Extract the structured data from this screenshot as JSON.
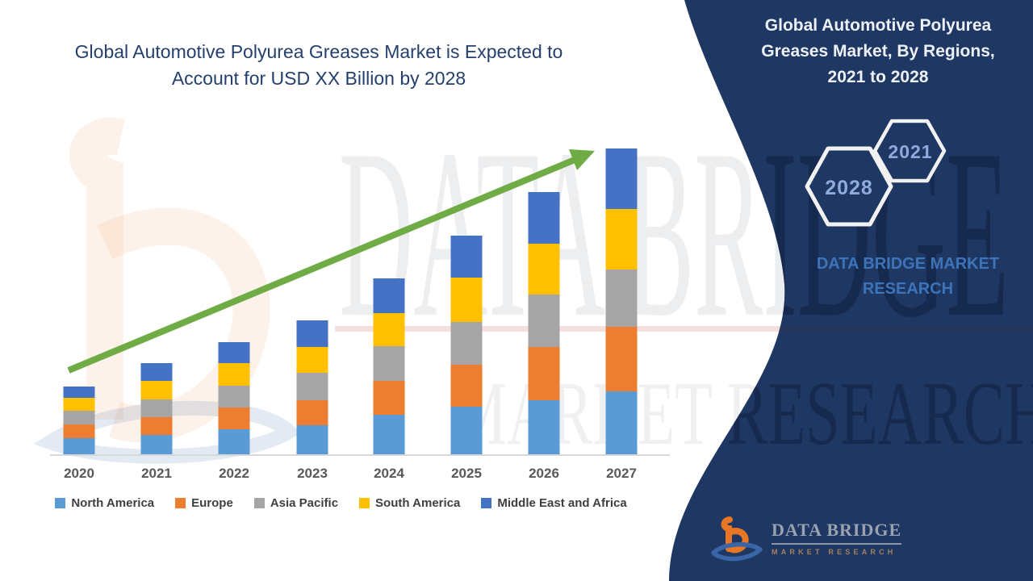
{
  "main_title": "Global Automotive Polyurea Greases Market is Expected to Account for USD XX Billion by 2028",
  "watermark": {
    "row1": "DATA BRIDGE",
    "row2": "MARKET RESEARCH",
    "logo_b_color": "#ED7D31",
    "logo_swoosh_color": "#2E5FA3",
    "underline_color": "#D98C85"
  },
  "chart_data": {
    "type": "bar",
    "stacked": true,
    "title": "Global Automotive Polyurea Greases Market is Expected to Account for USD XX Billion by 2028",
    "xlabel": "",
    "ylabel": "",
    "units_note": "values shown as USD XX Billion (not labeled); series values are relative estimates read from bar pixel heights",
    "categories": [
      "2020",
      "2021",
      "2022",
      "2023",
      "2024",
      "2025",
      "2026",
      "2027"
    ],
    "series": [
      {
        "name": "North America",
        "color": "#5B9BD5",
        "values": [
          20,
          24,
          31,
          36,
          49,
          59,
          67,
          78
        ]
      },
      {
        "name": "Europe",
        "color": "#ED7D31",
        "values": [
          17,
          22,
          27,
          31,
          42,
          52,
          66,
          80
        ]
      },
      {
        "name": "Asia Pacific",
        "color": "#A5A5A5",
        "values": [
          17,
          22,
          27,
          34,
          43,
          53,
          65,
          71
        ]
      },
      {
        "name": "South America",
        "color": "#FFC000",
        "values": [
          16,
          23,
          28,
          32,
          41,
          55,
          63,
          75
        ]
      },
      {
        "name": "Middle East and Africa",
        "color": "#4472C4",
        "values": [
          14,
          22,
          26,
          33,
          43,
          52,
          64,
          75
        ]
      }
    ],
    "totals": [
      84,
      113,
      139,
      166,
      218,
      271,
      325,
      379
    ],
    "ylim": [
      0,
      400
    ],
    "grid": false,
    "y_axis_visible": false,
    "legend_position": "bottom",
    "trend_arrow_color": "#6FAC46",
    "axis_line_color": "#D9D9D9",
    "tick_label_color": "#595959"
  },
  "side_panel": {
    "background": "#1F3763",
    "title": "Global Automotive Polyurea Greases Market, By Regions, 2021 to 2028",
    "hexagon_big_label": "2028",
    "hexagon_small_label": "2021",
    "brand_text": "DATA BRIDGE MARKET RESEARCH",
    "footer_logo_name": "DATA BRIDGE",
    "footer_logo_tagline": "MARKET RESEARCH"
  }
}
